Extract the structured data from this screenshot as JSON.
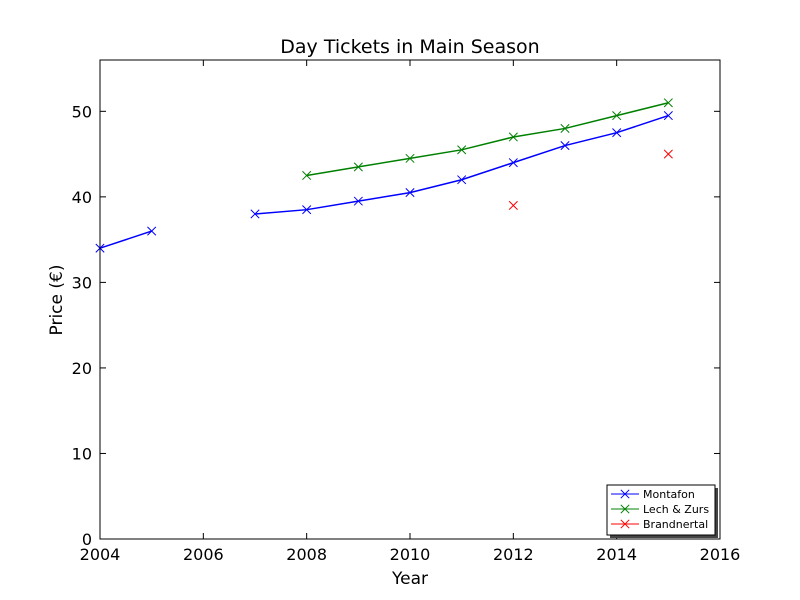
{
  "chart_data": {
    "type": "line",
    "title": "Day Tickets in Main Season",
    "xlabel": "Year",
    "ylabel": "Price (€)",
    "xlim": [
      2004,
      2016
    ],
    "ylim": [
      0,
      56
    ],
    "xticks": [
      "2004",
      "2006",
      "2008",
      "2010",
      "2012",
      "2014",
      "2016"
    ],
    "yticks": [
      "0",
      "10",
      "20",
      "30",
      "40",
      "50"
    ],
    "grid": false,
    "legend_position": "bottom-right",
    "series": [
      {
        "name": "Montafon",
        "color": "#0000ff",
        "marker": "x",
        "points": [
          [
            2004,
            34
          ],
          [
            2005,
            36
          ],
          [
            2006,
            null
          ],
          [
            2007,
            38
          ],
          [
            2008,
            38.5
          ],
          [
            2009,
            39.5
          ],
          [
            2010,
            40.5
          ],
          [
            2011,
            42
          ],
          [
            2012,
            44
          ],
          [
            2013,
            46
          ],
          [
            2014,
            47.5
          ],
          [
            2015,
            49.5
          ]
        ]
      },
      {
        "name": "Lech & Zurs",
        "color": "#008000",
        "marker": "x",
        "points": [
          [
            2008,
            42.5
          ],
          [
            2009,
            43.5
          ],
          [
            2010,
            44.5
          ],
          [
            2011,
            45.5
          ],
          [
            2012,
            47
          ],
          [
            2013,
            48
          ],
          [
            2014,
            49.5
          ],
          [
            2015,
            51
          ]
        ]
      },
      {
        "name": "Brandnertal",
        "color": "#ff0000",
        "marker": "x",
        "points": [
          [
            2012,
            39
          ],
          [
            2015,
            45
          ]
        ]
      }
    ]
  }
}
